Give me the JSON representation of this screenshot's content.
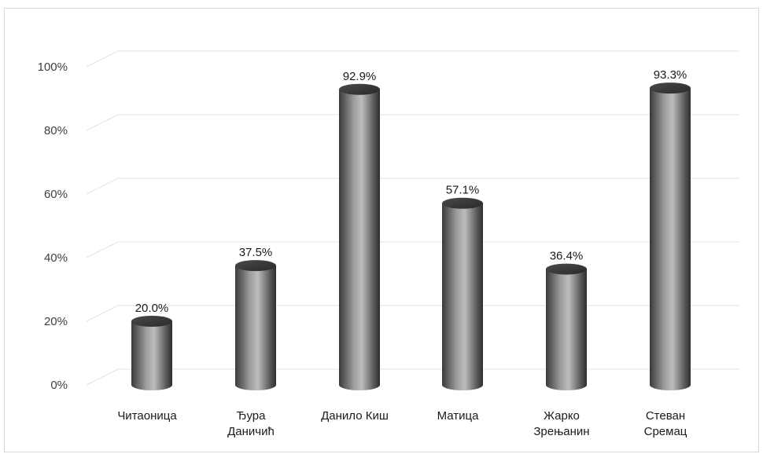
{
  "chart_data": {
    "type": "bar",
    "style": "3d-cylinder",
    "categories": [
      [
        "Читаоница"
      ],
      [
        "Ђура",
        "Даничић"
      ],
      [
        "Данило Киш"
      ],
      [
        "Матица"
      ],
      [
        "Жарко",
        "Зрењанин"
      ],
      [
        "Стеван",
        "Сремац"
      ]
    ],
    "values": [
      20.0,
      37.5,
      92.9,
      57.1,
      36.4,
      93.3
    ],
    "data_labels": [
      "20.0%",
      "37.5%",
      "92.9%",
      "57.1%",
      "36.4%",
      "93.3%"
    ],
    "yticks": [
      "0%",
      "20%",
      "40%",
      "60%",
      "80%",
      "100%"
    ],
    "ylim": [
      0,
      100
    ],
    "title": "",
    "xlabel": "",
    "ylabel": "",
    "grid": true,
    "legend": "none",
    "colors": {
      "bar": "#808080",
      "bar_dark": "#3c3c3c",
      "bar_light": "#bdbdbd",
      "grid": "#e3e3e3"
    }
  }
}
